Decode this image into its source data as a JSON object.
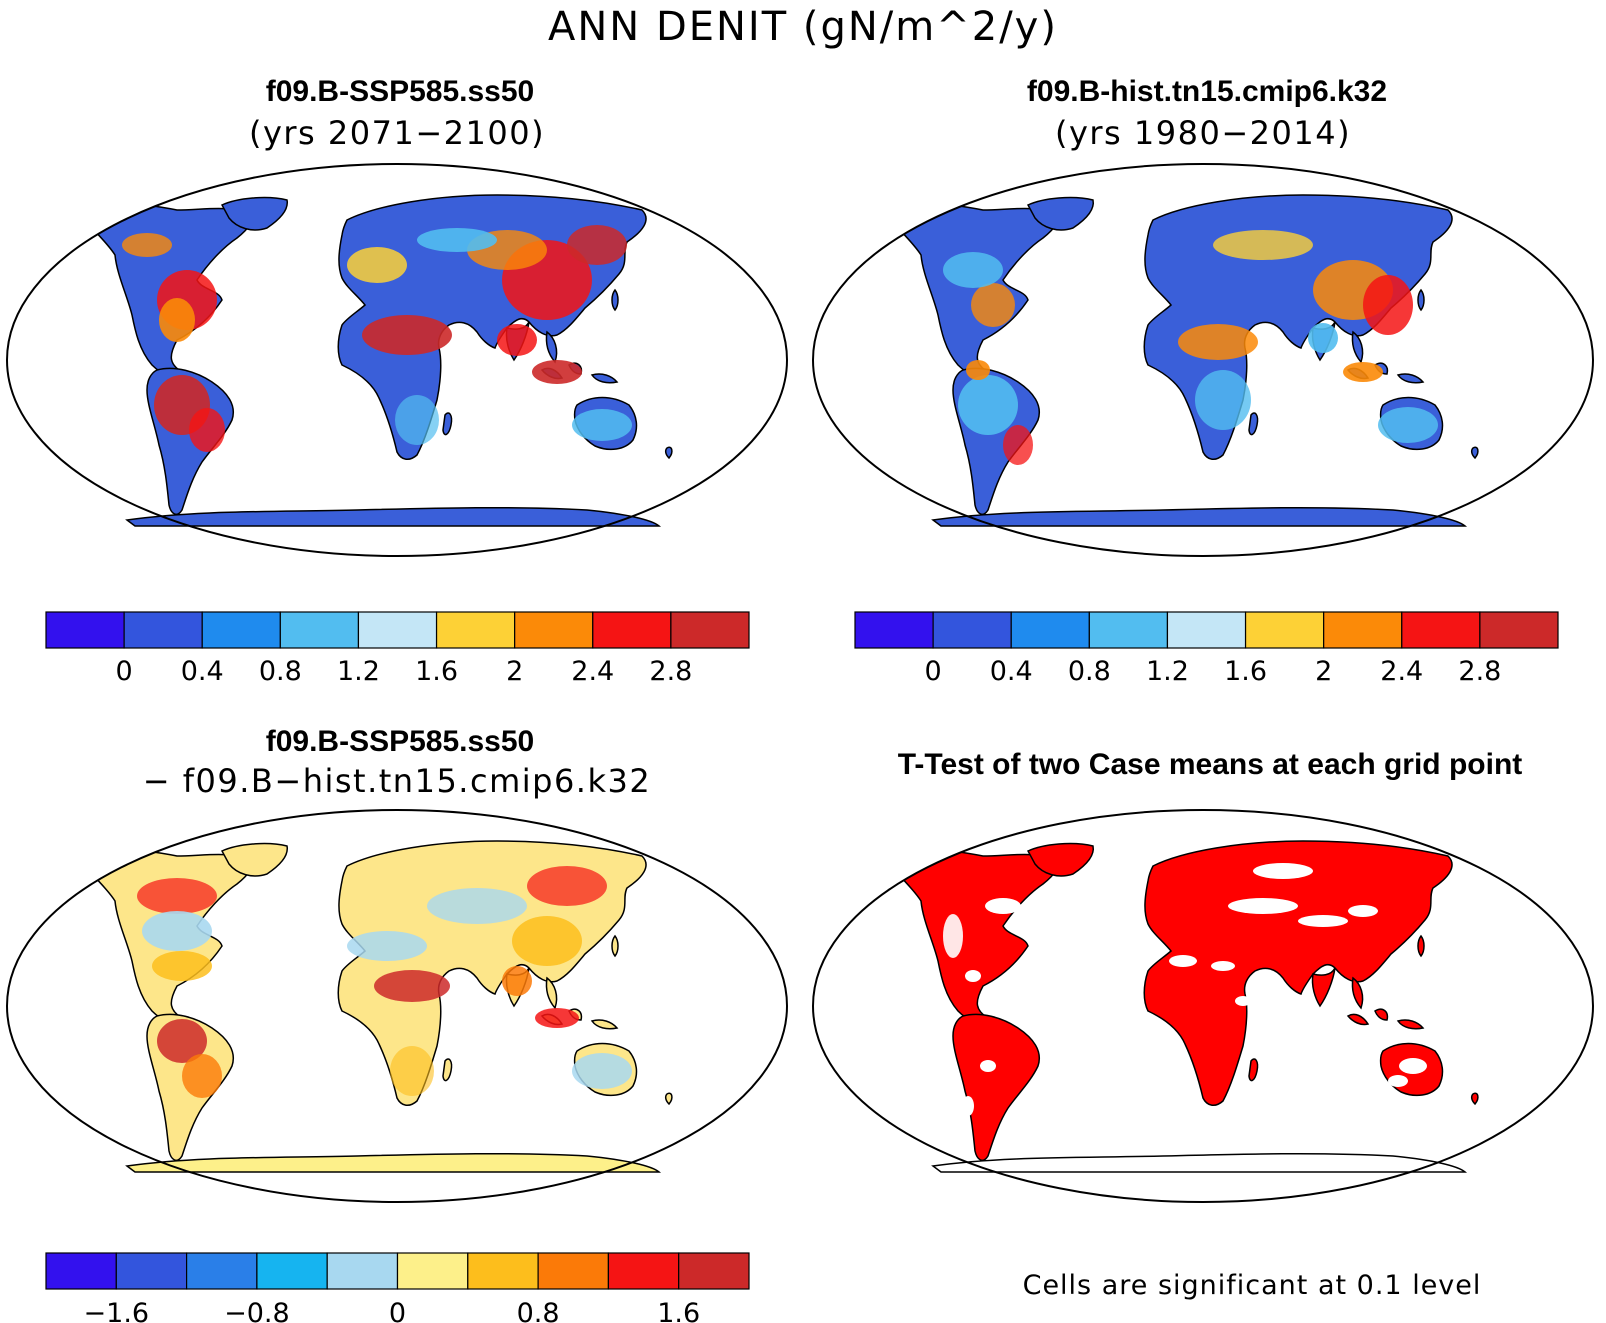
{
  "figure": {
    "title": "ANN DENIT (gN/m^2/y)",
    "note": "Cells are significant at 0.1 level"
  },
  "panels": [
    {
      "id": "future",
      "title": "f09.B-SSP585.ss50",
      "subtitle": "(yrs 2071−2100)",
      "colorbar": {
        "colors": [
          "#3311ee",
          "#3355dd",
          "#1f8bee",
          "#52bdf0",
          "#c4e6f6",
          "#fdd136",
          "#fb8a08",
          "#f51414",
          "#cc2929"
        ],
        "tick_labels": [
          "0",
          "0.4",
          "0.8",
          "1.2",
          "1.6",
          "2",
          "2.4",
          "2.8"
        ]
      }
    },
    {
      "id": "historical",
      "title": "f09.B-hist.tn15.cmip6.k32",
      "subtitle": "(yrs 1980−2014)",
      "colorbar": {
        "colors": [
          "#3311ee",
          "#3355dd",
          "#1f8bee",
          "#52bdf0",
          "#c4e6f6",
          "#fdd136",
          "#fb8a08",
          "#f51414",
          "#cc2929"
        ],
        "tick_labels": [
          "0",
          "0.4",
          "0.8",
          "1.2",
          "1.6",
          "2",
          "2.4",
          "2.8"
        ]
      }
    },
    {
      "id": "difference",
      "title": "f09.B-SSP585.ss50",
      "subtitle": "− f09.B−hist.tn15.cmip6.k32",
      "colorbar": {
        "colors": [
          "#3311ee",
          "#3355dd",
          "#2a7fe8",
          "#16b4f0",
          "#a8d8f0",
          "#fdf08a",
          "#fdbe1c",
          "#fb7a08",
          "#f51414",
          "#cc2929"
        ],
        "tick_labels": [
          "−1.6",
          "−0.8",
          "0",
          "0.8",
          "1.6"
        ]
      }
    },
    {
      "id": "ttest",
      "title": "T-Test of two Case means at each grid point",
      "significant_color": "#ff0000"
    }
  ]
}
